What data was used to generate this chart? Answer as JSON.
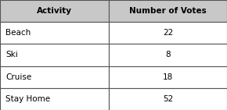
{
  "col1_header": "Activity",
  "col2_header": "Number of Votes",
  "rows": [
    [
      "Beach",
      "22"
    ],
    [
      "Ski",
      "8"
    ],
    [
      "Cruise",
      "18"
    ],
    [
      "Stay Home",
      "52"
    ]
  ],
  "header_bg": "#c8c8c8",
  "header_text_color": "#000000",
  "row_bg": "#ffffff",
  "border_color": "#555555",
  "font_size": 7.5,
  "header_font_size": 7.5,
  "fig_width": 2.9,
  "fig_height": 1.41,
  "dpi": 100
}
